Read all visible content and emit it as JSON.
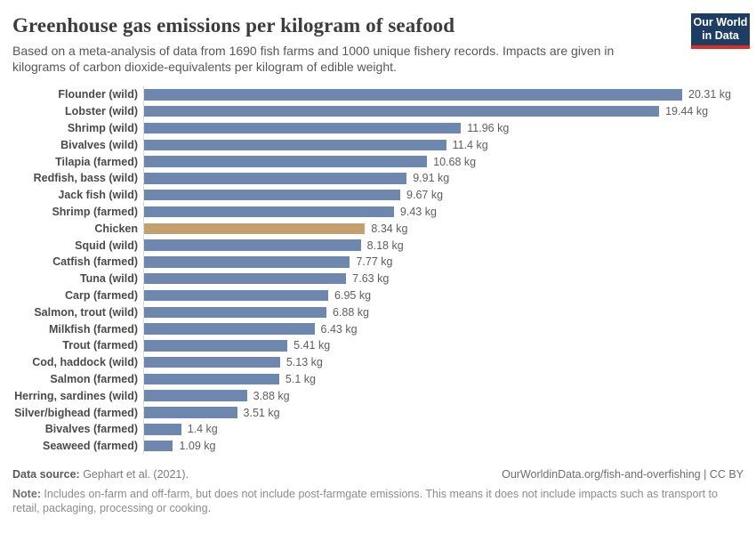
{
  "header": {
    "title": "Greenhouse gas emissions per kilogram of seafood",
    "subtitle": "Based on a meta-analysis of data from 1690 fish farms and 1000 unique fishery records. Impacts are given in kilograms of carbon dioxide-equivalents per kilogram of edible weight.",
    "logo": {
      "line1": "Our World",
      "line2": "in Data"
    }
  },
  "chart_data": {
    "type": "bar",
    "orientation": "horizontal",
    "title": "Greenhouse gas emissions per kilogram of seafood",
    "unit": "kg",
    "xlim": [
      0,
      20.31
    ],
    "grid": false,
    "legend": false,
    "categories": [
      "Flounder (wild)",
      "Lobster (wild)",
      "Shrimp (wild)",
      "Bivalves (wild)",
      "Tilapia (farmed)",
      "Redfish, bass (wild)",
      "Jack fish (wild)",
      "Shrimp (farmed)",
      "Chicken",
      "Squid (wild)",
      "Catfish (farmed)",
      "Tuna (wild)",
      "Carp (farmed)",
      "Salmon, trout (wild)",
      "Milkfish (farmed)",
      "Trout (farmed)",
      "Cod, haddock (wild)",
      "Salmon (farmed)",
      "Herring, sardines (wild)",
      "Silver/bighead (farmed)",
      "Bivalves (farmed)",
      "Seaweed (farmed)"
    ],
    "values": [
      20.31,
      19.44,
      11.96,
      11.4,
      10.68,
      9.91,
      9.67,
      9.43,
      8.34,
      8.18,
      7.77,
      7.63,
      6.95,
      6.88,
      6.43,
      5.41,
      5.13,
      5.1,
      3.88,
      3.51,
      1.4,
      1.09
    ],
    "value_labels": [
      "20.31 kg",
      "19.44 kg",
      "11.96 kg",
      "11.4 kg",
      "10.68 kg",
      "9.91 kg",
      "9.67 kg",
      "9.43 kg",
      "8.34 kg",
      "8.18 kg",
      "7.77 kg",
      "7.63 kg",
      "6.95 kg",
      "6.88 kg",
      "6.43 kg",
      "5.41 kg",
      "5.13 kg",
      "5.1 kg",
      "3.88 kg",
      "3.51 kg",
      "1.4 kg",
      "1.09 kg"
    ],
    "highlight_category": "Chicken",
    "colors": {
      "bar": "#6e87ae",
      "highlight_bar": "#c5a06f",
      "axis_line": "#dcdcdc"
    }
  },
  "footer": {
    "source_label": "Data source:",
    "source_value": " Gephart et al. (2021).",
    "link": "OurWorldinData.org/fish-and-overfishing | CC BY",
    "note_label": "Note:",
    "note_value": " Includes on-farm and off-farm, but does not include post-farmgate emissions. This means it does not include impacts such as transport to retail, packaging, processing or cooking."
  }
}
